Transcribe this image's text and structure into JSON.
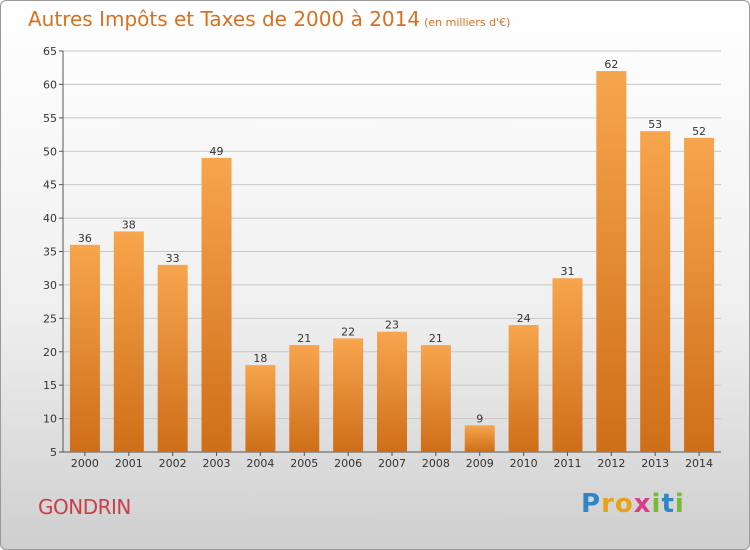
{
  "title": "Autres Impôts et Taxes de 2000 à 2014",
  "subtitle": "(en milliers d'€)",
  "commune": "GONDRIN",
  "logo": {
    "text": "Proxiti",
    "letters": [
      {
        "ch": "P",
        "color": "#2e86c8"
      },
      {
        "ch": "r",
        "color": "#e7a21a"
      },
      {
        "ch": "o",
        "color": "#e7a21a"
      },
      {
        "ch": "x",
        "color": "#d93d8c"
      },
      {
        "ch": "i",
        "color": "#7cb83a"
      },
      {
        "ch": "t",
        "color": "#2e86c8"
      },
      {
        "ch": "i",
        "color": "#7cb83a"
      }
    ]
  },
  "colors": {
    "bar_light": "#f7a54e",
    "bar_dark": "#cf6e19",
    "title": "#d9701f",
    "commune": "#c9404a",
    "grid": "#c8c8c8"
  },
  "chart_data": {
    "type": "bar",
    "categories": [
      "2000",
      "2001",
      "2002",
      "2003",
      "2004",
      "2005",
      "2006",
      "2007",
      "2008",
      "2009",
      "2010",
      "2011",
      "2012",
      "2013",
      "2014"
    ],
    "values": [
      36,
      38,
      33,
      49,
      18,
      21,
      22,
      23,
      21,
      9,
      24,
      31,
      62,
      53,
      52
    ],
    "ylim": [
      5,
      65
    ],
    "yticks": [
      5,
      10,
      15,
      20,
      25,
      30,
      35,
      40,
      45,
      50,
      55,
      60,
      65
    ],
    "grid": true,
    "data_labels": true
  }
}
